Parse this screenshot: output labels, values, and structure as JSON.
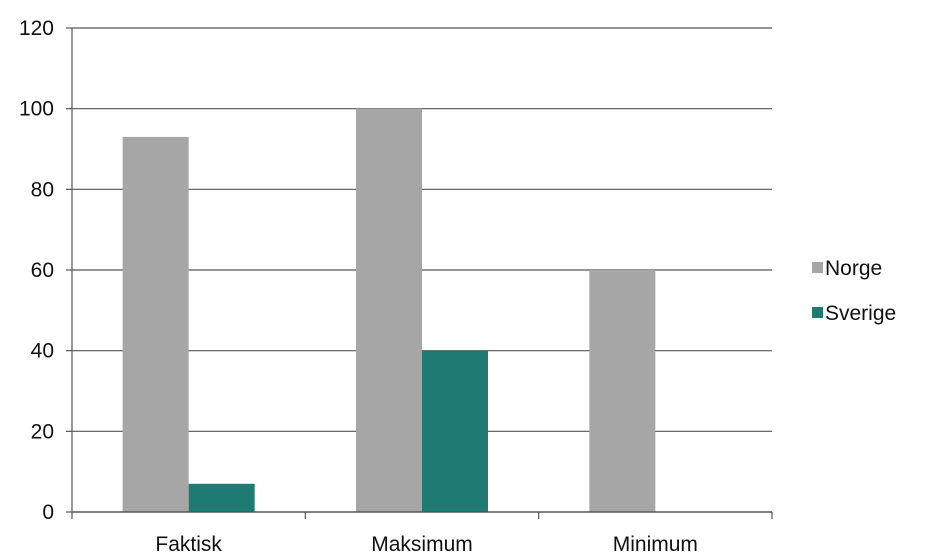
{
  "chart_data": {
    "type": "bar",
    "title": "",
    "xlabel": "",
    "ylabel": "",
    "categories": [
      "Faktisk",
      "Maksimum",
      "Minimum"
    ],
    "series": [
      {
        "name": "Norge",
        "values": [
          93,
          100,
          60
        ],
        "color": "#a6a6a6"
      },
      {
        "name": "Sverige",
        "values": [
          7,
          40,
          0
        ],
        "color": "#1f7a74"
      }
    ],
    "ylim": [
      0,
      120
    ],
    "yticks": [
      "0",
      "20",
      "40",
      "60",
      "80",
      "100",
      "120"
    ],
    "grid": true,
    "legend_position": "right"
  }
}
